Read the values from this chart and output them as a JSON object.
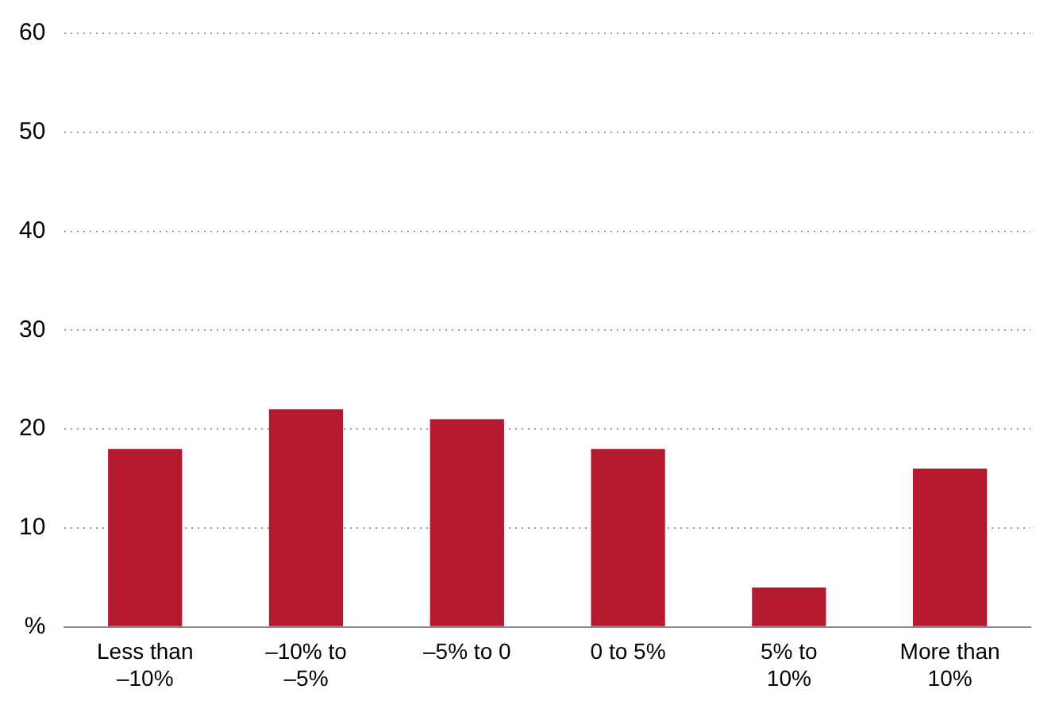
{
  "chart_data": {
    "type": "bar",
    "categories": [
      "Less than\n–10%",
      "–10% to\n–5%",
      "–5% to 0",
      "0 to 5%",
      "5% to\n10%",
      "More than\n10%"
    ],
    "values": [
      18,
      22,
      21,
      18,
      4,
      16
    ],
    "color": "#b5192f",
    "ylim": [
      0,
      60
    ],
    "yticks": [
      {
        "value": 0,
        "label": "%"
      },
      10,
      20,
      30,
      40,
      50,
      60
    ],
    "grid": "y"
  }
}
